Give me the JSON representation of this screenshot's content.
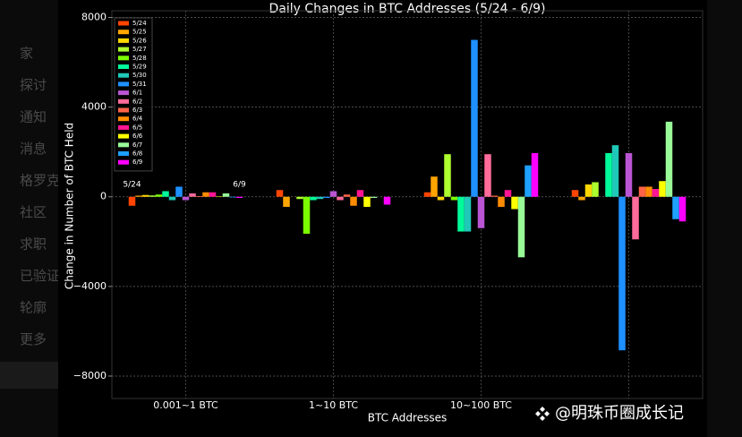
{
  "chart_data": {
    "type": "bar",
    "title": "Daily Changes in BTC Addresses (5/24 - 6/9)",
    "xlabel": "BTC Addresses",
    "ylabel": "Change in Number of BTC Held",
    "categories": [
      "0.001~1 BTC",
      "1~10 BTC",
      "10~100 BTC",
      null
    ],
    "series": [
      {
        "name": "5/24",
        "color": "#ff4500",
        "values": [
          -400,
          300,
          200,
          300
        ]
      },
      {
        "name": "5/25",
        "color": "#ffa500",
        "values": [
          50,
          -450,
          900,
          -150
        ]
      },
      {
        "name": "5/26",
        "color": "#ffd700",
        "values": [
          80,
          0,
          -150,
          550
        ]
      },
      {
        "name": "5/27",
        "color": "#adff2f",
        "values": [
          60,
          -100,
          1900,
          650
        ]
      },
      {
        "name": "5/28",
        "color": "#7cfc00",
        "values": [
          100,
          -1650,
          -150,
          0
        ]
      },
      {
        "name": "5/29",
        "color": "#00fa9a",
        "values": [
          250,
          -150,
          -1550,
          1950
        ]
      },
      {
        "name": "5/30",
        "color": "#20c8b8",
        "values": [
          -150,
          -100,
          -1550,
          2300
        ]
      },
      {
        "name": "5/31",
        "color": "#1e90ff",
        "values": [
          450,
          -50,
          7000,
          -6850
        ]
      },
      {
        "name": "6/1",
        "color": "#ba55d3",
        "values": [
          -150,
          250,
          -1400,
          1950
        ]
      },
      {
        "name": "6/2",
        "color": "#ff6b9a",
        "values": [
          150,
          -150,
          1900,
          -1900
        ]
      },
      {
        "name": "6/3",
        "color": "#ff6347",
        "values": [
          30,
          100,
          50,
          450
        ]
      },
      {
        "name": "6/4",
        "color": "#ff8c00",
        "values": [
          200,
          -400,
          -450,
          450
        ]
      },
      {
        "name": "6/5",
        "color": "#ff1493",
        "values": [
          200,
          300,
          300,
          350
        ]
      },
      {
        "name": "6/6",
        "color": "#ffff00",
        "values": [
          20,
          -450,
          -550,
          700
        ]
      },
      {
        "name": "6/7",
        "color": "#98fb98",
        "values": [
          150,
          -50,
          -2700,
          3350
        ]
      },
      {
        "name": "6/8",
        "color": "#1ea0ff",
        "values": [
          -30,
          0,
          1400,
          -1000
        ]
      },
      {
        "name": "6/9",
        "color": "#ff00ff",
        "values": [
          -50,
          -350,
          1950,
          -1100
        ]
      }
    ],
    "ylim": [
      -9000,
      8300
    ],
    "yticks": [
      {
        "value": -8000,
        "label": "−8000"
      },
      {
        "value": -4000,
        "label": "−4000"
      },
      0,
      4000,
      8000
    ],
    "grid": true,
    "legend": "upper left",
    "annotations": [
      "5/24",
      "6/9"
    ]
  },
  "sidebar": [
    "家",
    "探讨",
    "通知",
    "消息",
    "格罗克",
    "社区",
    "求职",
    "已验证",
    "轮廓",
    "更多"
  ],
  "watermark": "@明珠币圈成长记"
}
